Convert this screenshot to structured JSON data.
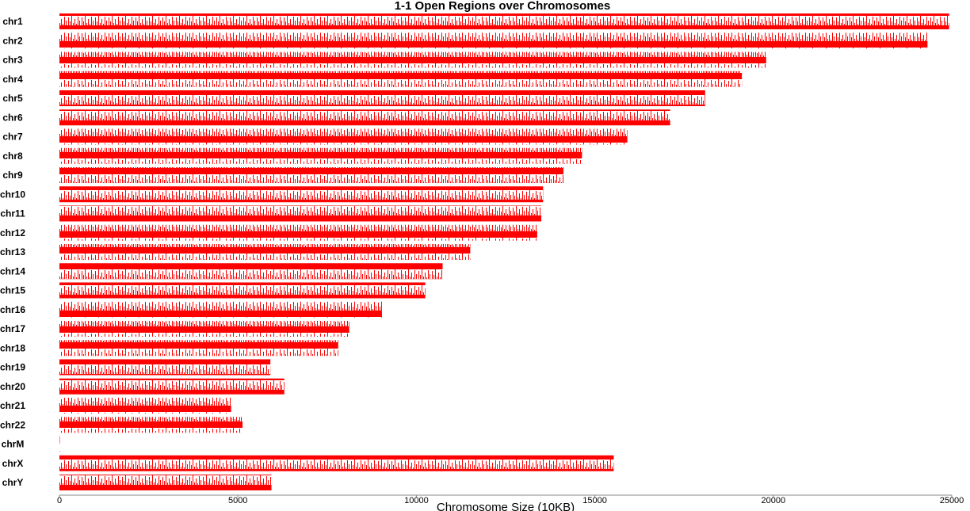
{
  "chart_data": {
    "type": "track",
    "title": "1-1 Open Regions over Chromosomes",
    "xlabel": "Chromosome Size (10KB)",
    "categories": [
      "chr1",
      "chr2",
      "chr3",
      "chr4",
      "chr5",
      "chr6",
      "chr7",
      "chr8",
      "chr9",
      "chr10",
      "chr11",
      "chr12",
      "chr13",
      "chr14",
      "chr15",
      "chr16",
      "chr17",
      "chr18",
      "chr19",
      "chr20",
      "chr21",
      "chr22",
      "chrM",
      "chrX",
      "chrY"
    ],
    "values": [
      24925,
      24320,
      19800,
      19120,
      18090,
      17110,
      15910,
      14640,
      14120,
      13550,
      13500,
      13385,
      11510,
      10735,
      10250,
      9035,
      8120,
      7810,
      5910,
      6300,
      4810,
      5130,
      2,
      15530,
      5940
    ],
    "color": "#ff0000",
    "xlim": [
      0,
      25000
    ],
    "xticks": [
      0,
      5000,
      10000,
      15000,
      20000,
      25000
    ]
  }
}
